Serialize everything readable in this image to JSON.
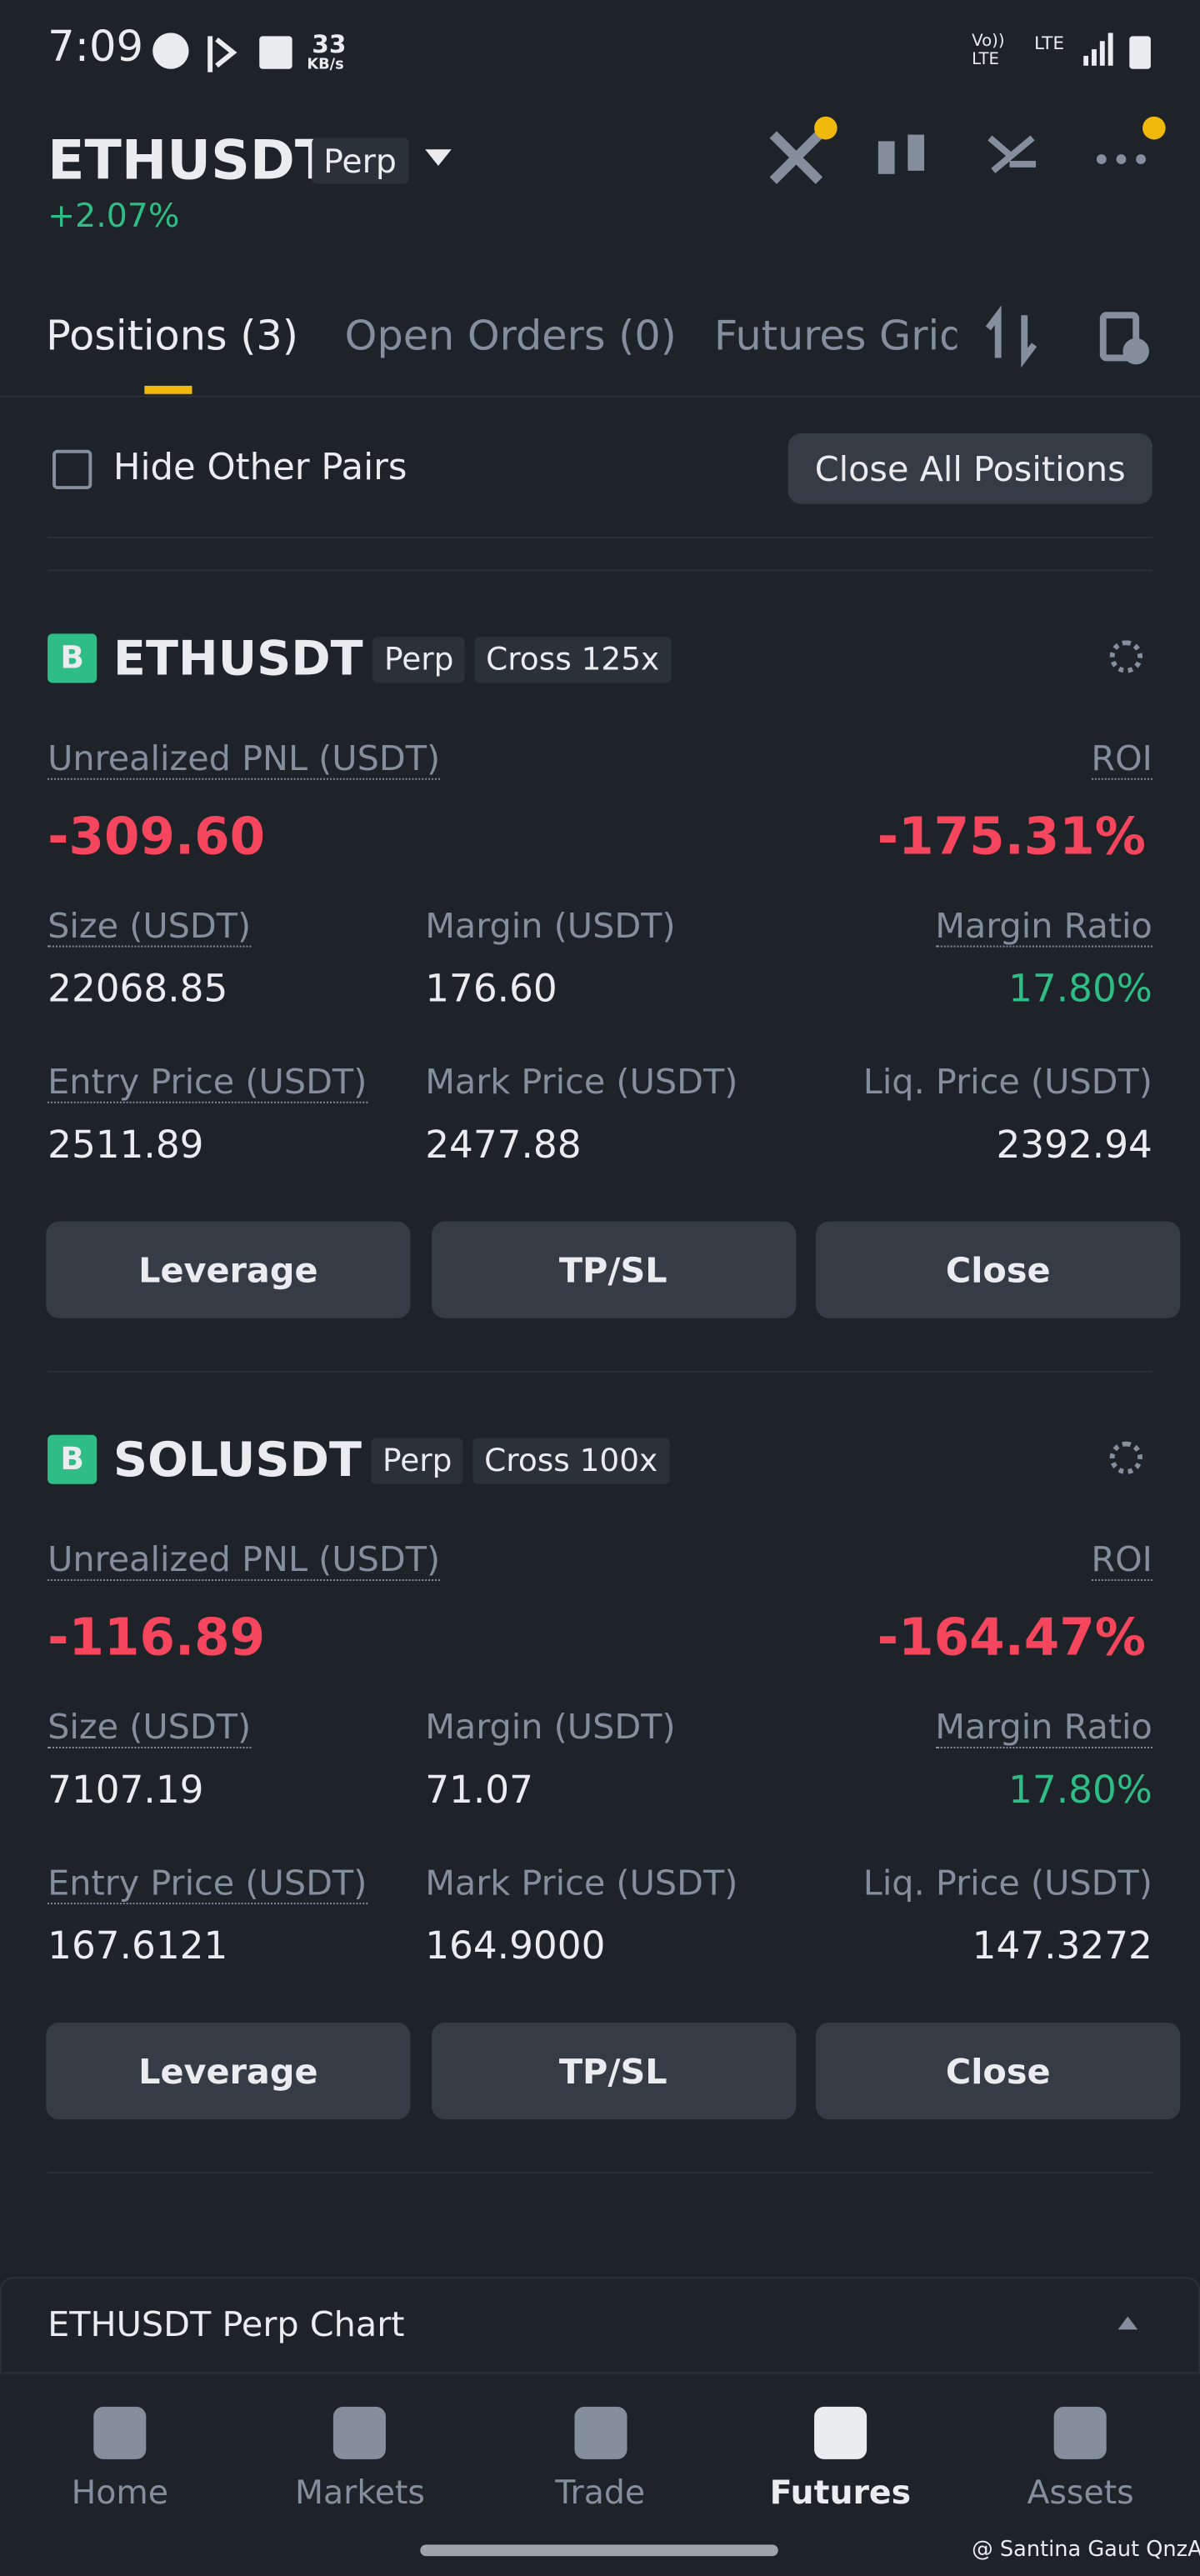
{
  "status_bar": {
    "time": "7:09",
    "speed": "33",
    "speed_unit": "KB/s",
    "network_1": "Vo)) LTE",
    "network_2": "LTE"
  },
  "header": {
    "symbol": "ETHUSDT",
    "tag": "Perp",
    "change": "+2.07%"
  },
  "tabs": [
    "Positions (3)",
    "Open Orders (0)",
    "Futures Grid"
  ],
  "toolbar": {
    "hide_other_pairs": "Hide Other Pairs",
    "close_all": "Close All Positions"
  },
  "positions": [
    {
      "side": "B",
      "symbol": "ETHUSDT",
      "type": "Perp",
      "margin_mode": "Cross 125x",
      "pnl_label": "Unrealized PNL (USDT)",
      "pnl": "-309.60",
      "roi_label": "ROI",
      "roi": "-175.31%",
      "fields": [
        {
          "label": "Size (USDT)",
          "value": "22068.85"
        },
        {
          "label": "Margin (USDT)",
          "value": "176.60"
        },
        {
          "label": "Margin Ratio",
          "value": "17.80%"
        },
        {
          "label": "Entry Price (USDT)",
          "value": "2511.89"
        },
        {
          "label": "Mark Price (USDT)",
          "value": "2477.88"
        },
        {
          "label": "Liq. Price (USDT)",
          "value": "2392.94"
        }
      ],
      "buttons": [
        "Leverage",
        "TP/SL",
        "Close"
      ]
    },
    {
      "side": "B",
      "symbol": "SOLUSDT",
      "type": "Perp",
      "margin_mode": "Cross 100x",
      "pnl_label": "Unrealized PNL (USDT)",
      "pnl": "-116.89",
      "roi_label": "ROI",
      "roi": "-164.47%",
      "fields": [
        {
          "label": "Size (USDT)",
          "value": "7107.19"
        },
        {
          "label": "Margin (USDT)",
          "value": "71.07"
        },
        {
          "label": "Margin Ratio",
          "value": "17.80%"
        },
        {
          "label": "Entry Price (USDT)",
          "value": "167.6121"
        },
        {
          "label": "Mark Price (USDT)",
          "value": "164.9000"
        },
        {
          "label": "Liq. Price (USDT)",
          "value": "147.3272"
        }
      ],
      "buttons": [
        "Leverage",
        "TP/SL",
        "Close"
      ]
    }
  ],
  "chart_bar": {
    "title": "ETHUSDT Perp Chart"
  },
  "nav": [
    "Home",
    "Markets",
    "Trade",
    "Futures",
    "Assets"
  ],
  "watermark": "@ Santina Gaut QnzA"
}
